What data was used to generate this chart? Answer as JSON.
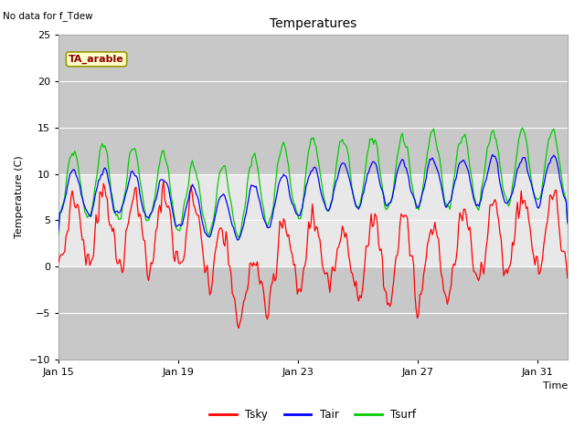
{
  "title": "Temperatures",
  "xlabel": "Time",
  "ylabel": "Temperature (C)",
  "top_left_text": "No data for f_Tdew",
  "box_label": "TA_arable",
  "ylim": [
    -10,
    25
  ],
  "yticks": [
    -10,
    -5,
    0,
    5,
    10,
    15,
    20,
    25
  ],
  "xtick_labels": [
    "Jan 15",
    "Jan 19",
    "Jan 23",
    "Jan 27",
    "Jan 31"
  ],
  "xtick_positions": [
    0,
    4,
    8,
    12,
    16
  ],
  "n_days": 17,
  "colors": {
    "Tsky": "#ff0000",
    "Tair": "#0000ff",
    "Tsurf": "#00cc00"
  },
  "plot_bg": "#e8e8e8",
  "band_lo_color": "#c8c8c8",
  "band_hi_color": "#c8c8c8",
  "fig_bg": "#ffffff",
  "grid_color": "#ffffff"
}
